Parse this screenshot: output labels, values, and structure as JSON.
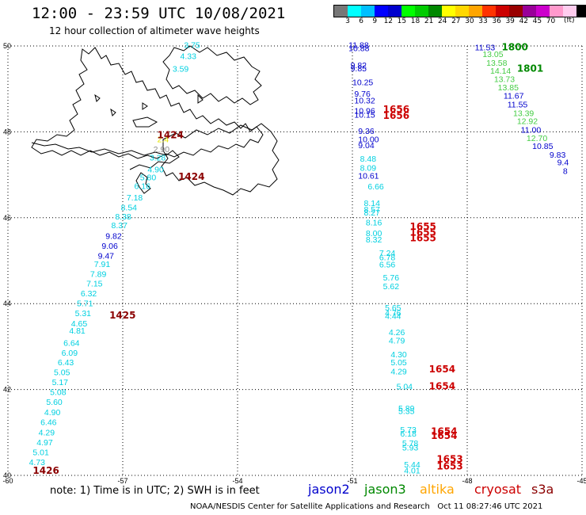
{
  "header": {
    "title": "12:00 - 23:59 UTC 10/08/2021",
    "subtitle": "12 hour collection of altimeter wave heights"
  },
  "scale": {
    "colors": [
      "#777777",
      "#00ffff",
      "#00bfff",
      "#0000ff",
      "#0000cd",
      "#00ff00",
      "#00cc00",
      "#008800",
      "#ffff00",
      "#ffd700",
      "#ffa500",
      "#ff3300",
      "#cc0000",
      "#990000",
      "#990099",
      "#cc00cc",
      "#ff99cc",
      "#ffccee",
      "#000000"
    ],
    "labels": [
      "3",
      "6",
      "9",
      "12",
      "15",
      "18",
      "21",
      "24",
      "27",
      "30",
      "33",
      "36",
      "39",
      "42",
      "45",
      "70"
    ],
    "unit": "(ft)"
  },
  "axes": {
    "lon_labels": [
      "-60",
      "-57",
      "-54",
      "-51",
      "-48",
      "-45"
    ],
    "lat_labels": [
      "40",
      "42",
      "44",
      "46",
      "48",
      "50"
    ]
  },
  "tracks": [
    {
      "name": "jason2",
      "color_hex": "#0000cc",
      "times": [],
      "points": []
    },
    {
      "name": "jason3",
      "color_hex": "#008800",
      "times": [
        {
          "label": "1800",
          "lon": -47.1,
          "lat": 49.9
        },
        {
          "label": "1801",
          "lon": -46.7,
          "lat": 49.4
        }
      ],
      "points": [
        {
          "v": "11.53",
          "lon": -47.8,
          "lat": 49.9
        },
        {
          "v": "13.05",
          "lon": -47.6,
          "lat": 49.74
        },
        {
          "v": "13.58",
          "lon": -47.5,
          "lat": 49.54
        },
        {
          "v": "14.14",
          "lon": -47.4,
          "lat": 49.35
        },
        {
          "v": "13.73",
          "lon": -47.3,
          "lat": 49.16
        },
        {
          "v": "13.85",
          "lon": -47.2,
          "lat": 48.97
        },
        {
          "v": "11.67",
          "lon": -47.05,
          "lat": 48.77
        },
        {
          "v": "11.55",
          "lon": -46.95,
          "lat": 48.57
        },
        {
          "v": "13.39",
          "lon": -46.8,
          "lat": 48.37
        },
        {
          "v": "12.92",
          "lon": -46.7,
          "lat": 48.18
        },
        {
          "v": "11.00",
          "lon": -46.6,
          "lat": 47.98
        },
        {
          "v": "12.70",
          "lon": -46.45,
          "lat": 47.79
        },
        {
          "v": "10.85",
          "lon": -46.3,
          "lat": 47.6
        },
        {
          "v": "9.83",
          "lon": -45.85,
          "lat": 47.4
        },
        {
          "v": "9.4",
          "lon": -45.65,
          "lat": 47.22
        },
        {
          "v": "8",
          "lon": -45.5,
          "lat": 47.02
        }
      ]
    },
    {
      "name": "altika",
      "color_hex": "#ffa500",
      "times": [],
      "points": []
    },
    {
      "name": "cryosat",
      "color_hex": "#cc0000",
      "times": [
        {
          "label": "1656",
          "lon": -50.2,
          "lat": 48.45
        },
        {
          "label": "1656",
          "lon": -50.2,
          "lat": 48.3
        },
        {
          "label": "1655",
          "lon": -49.5,
          "lat": 45.72
        },
        {
          "label": "1655",
          "lon": -49.5,
          "lat": 45.58
        },
        {
          "label": "1655",
          "lon": -49.5,
          "lat": 45.45
        },
        {
          "label": "1654",
          "lon": -49.0,
          "lat": 42.4
        },
        {
          "label": "1654",
          "lon": -49.0,
          "lat": 42.0
        },
        {
          "label": "1654",
          "lon": -48.95,
          "lat": 40.95
        },
        {
          "label": "1654",
          "lon": -48.95,
          "lat": 40.85
        },
        {
          "label": "1653",
          "lon": -48.8,
          "lat": 40.3
        },
        {
          "label": "1653",
          "lon": -48.8,
          "lat": 40.14
        }
      ],
      "points": [
        {
          "v": "11.88",
          "lon": -51.1,
          "lat": 49.95
        },
        {
          "v": "10.88",
          "lon": -51.1,
          "lat": 49.88
        },
        {
          "v": "9.82",
          "lon": -51.05,
          "lat": 49.48
        },
        {
          "v": "9.85",
          "lon": -51.05,
          "lat": 49.41
        },
        {
          "v": "10.25",
          "lon": -51.0,
          "lat": 49.09
        },
        {
          "v": "9.76",
          "lon": -50.95,
          "lat": 48.82
        },
        {
          "v": "10.32",
          "lon": -50.95,
          "lat": 48.66
        },
        {
          "v": "10.96",
          "lon": -50.95,
          "lat": 48.42
        },
        {
          "v": "10.15",
          "lon": -50.95,
          "lat": 48.33
        },
        {
          "v": "9.36",
          "lon": -50.85,
          "lat": 47.95
        },
        {
          "v": "10.00",
          "lon": -50.85,
          "lat": 47.76
        },
        {
          "v": "9.04",
          "lon": -50.85,
          "lat": 47.62
        },
        {
          "v": "8.48",
          "lon": -50.8,
          "lat": 47.31
        },
        {
          "v": "8.09",
          "lon": -50.8,
          "lat": 47.09
        },
        {
          "v": "10.61",
          "lon": -50.85,
          "lat": 46.91
        },
        {
          "v": "6.66",
          "lon": -50.6,
          "lat": 46.66
        },
        {
          "v": "8.14",
          "lon": -50.7,
          "lat": 46.27
        },
        {
          "v": "8.57",
          "lon": -50.7,
          "lat": 46.13
        },
        {
          "v": "8.27",
          "lon": -50.7,
          "lat": 46.05
        },
        {
          "v": "8.16",
          "lon": -50.65,
          "lat": 45.82
        },
        {
          "v": "8.00",
          "lon": -50.65,
          "lat": 45.57
        },
        {
          "v": "8.32",
          "lon": -50.65,
          "lat": 45.42
        },
        {
          "v": "7.24",
          "lon": -50.3,
          "lat": 45.11
        },
        {
          "v": "6.78",
          "lon": -50.3,
          "lat": 45.01
        },
        {
          "v": "6.56",
          "lon": -50.3,
          "lat": 44.84
        },
        {
          "v": "5.76",
          "lon": -50.2,
          "lat": 44.54
        },
        {
          "v": "5.62",
          "lon": -50.2,
          "lat": 44.34
        },
        {
          "v": "5.65",
          "lon": -50.15,
          "lat": 43.84
        },
        {
          "v": "4.76",
          "lon": -50.15,
          "lat": 43.72
        },
        {
          "v": "4.44",
          "lon": -50.15,
          "lat": 43.64
        },
        {
          "v": "4.26",
          "lon": -50.05,
          "lat": 43.27
        },
        {
          "v": "4.79",
          "lon": -50.05,
          "lat": 43.07
        },
        {
          "v": "4.30",
          "lon": -50.0,
          "lat": 42.75
        },
        {
          "v": "5.05",
          "lon": -50.0,
          "lat": 42.56
        },
        {
          "v": "4.29",
          "lon": -50.0,
          "lat": 42.35
        },
        {
          "v": "5.04",
          "lon": -49.85,
          "lat": 42.0
        },
        {
          "v": "5.89",
          "lon": -49.8,
          "lat": 41.49
        },
        {
          "v": "5.35",
          "lon": -49.8,
          "lat": 41.43
        },
        {
          "v": "5.73",
          "lon": -49.75,
          "lat": 41.0
        },
        {
          "v": "6.18",
          "lon": -49.75,
          "lat": 40.9
        },
        {
          "v": "5.78",
          "lon": -49.7,
          "lat": 40.68
        },
        {
          "v": "5.93",
          "lon": -49.7,
          "lat": 40.58
        },
        {
          "v": "5.44",
          "lon": -49.65,
          "lat": 40.18
        },
        {
          "v": "4.01",
          "lon": -49.65,
          "lat": 40.05
        }
      ]
    },
    {
      "name": "s3a",
      "color_hex": "#8b0000",
      "times": [
        {
          "label": "1424",
          "lon": -56.1,
          "lat": 47.85
        },
        {
          "label": "1424",
          "lon": -55.55,
          "lat": 46.88
        },
        {
          "label": "1425",
          "lon": -57.35,
          "lat": 43.65
        },
        {
          "label": "1426",
          "lon": -59.35,
          "lat": 40.04
        }
      ],
      "points": [
        {
          "v": "3.75",
          "lon": -55.4,
          "lat": 49.95
        },
        {
          "v": "4.33",
          "lon": -55.5,
          "lat": 49.7
        },
        {
          "v": "3.59",
          "lon": -55.7,
          "lat": 49.4
        },
        {
          "v": "2.4",
          "lon": -56.1,
          "lat": 47.76
        },
        {
          "v": "2.90",
          "lon": -56.2,
          "lat": 47.53
        },
        {
          "v": "3.28",
          "lon": -56.3,
          "lat": 47.33
        },
        {
          "v": "4.90",
          "lon": -56.35,
          "lat": 47.06
        },
        {
          "v": "5.80",
          "lon": -56.55,
          "lat": 46.87
        },
        {
          "v": "6.16",
          "lon": -56.7,
          "lat": 46.67
        },
        {
          "v": "7.18",
          "lon": -56.9,
          "lat": 46.4
        },
        {
          "v": "8.54",
          "lon": -57.05,
          "lat": 46.17
        },
        {
          "v": "8.38",
          "lon": -57.2,
          "lat": 45.96
        },
        {
          "v": "8.37",
          "lon": -57.3,
          "lat": 45.76
        },
        {
          "v": "9.82",
          "lon": -57.45,
          "lat": 45.51
        },
        {
          "v": "9.06",
          "lon": -57.55,
          "lat": 45.28
        },
        {
          "v": "9.47",
          "lon": -57.65,
          "lat": 45.05
        },
        {
          "v": "7.91",
          "lon": -57.75,
          "lat": 44.85
        },
        {
          "v": "7.89",
          "lon": -57.85,
          "lat": 44.62
        },
        {
          "v": "7.15",
          "lon": -57.95,
          "lat": 44.4
        },
        {
          "v": "6.32",
          "lon": -58.1,
          "lat": 44.17
        },
        {
          "v": "5.71",
          "lon": -58.2,
          "lat": 43.94
        },
        {
          "v": "5.31",
          "lon": -58.25,
          "lat": 43.71
        },
        {
          "v": "4.65",
          "lon": -58.35,
          "lat": 43.47
        },
        {
          "v": "4.81",
          "lon": -58.4,
          "lat": 43.3
        },
        {
          "v": "6.64",
          "lon": -58.55,
          "lat": 43.02
        },
        {
          "v": "6.09",
          "lon": -58.6,
          "lat": 42.79
        },
        {
          "v": "6.43",
          "lon": -58.7,
          "lat": 42.56
        },
        {
          "v": "5.05",
          "lon": -58.8,
          "lat": 42.33
        },
        {
          "v": "5.17",
          "lon": -58.85,
          "lat": 42.1
        },
        {
          "v": "5.08",
          "lon": -58.9,
          "lat": 41.87
        },
        {
          "v": "5.60",
          "lon": -59.0,
          "lat": 41.64
        },
        {
          "v": "4.90",
          "lon": -59.05,
          "lat": 41.4
        },
        {
          "v": "6.46",
          "lon": -59.15,
          "lat": 41.17
        },
        {
          "v": "4.29",
          "lon": -59.2,
          "lat": 40.93
        },
        {
          "v": "4.97",
          "lon": -59.25,
          "lat": 40.7
        },
        {
          "v": "5.01",
          "lon": -59.35,
          "lat": 40.47
        },
        {
          "v": "4.73",
          "lon": -59.45,
          "lat": 40.24
        }
      ]
    }
  ],
  "note": "note: 1) Time is in UTC; 2) SWH is in feet",
  "satellites": [
    {
      "label": "jason2",
      "color": "#0000cc"
    },
    {
      "label": "jason3",
      "color": "#008800"
    },
    {
      "label": "altika",
      "color": "#ffa500"
    },
    {
      "label": "cryosat",
      "color": "#cc0000"
    },
    {
      "label": "s3a",
      "color": "#8b0000"
    }
  ],
  "footer": "NOAA/NESDIS Center for Satellite Applications and Research   Oct 11 08:27:46 UTC 2021"
}
